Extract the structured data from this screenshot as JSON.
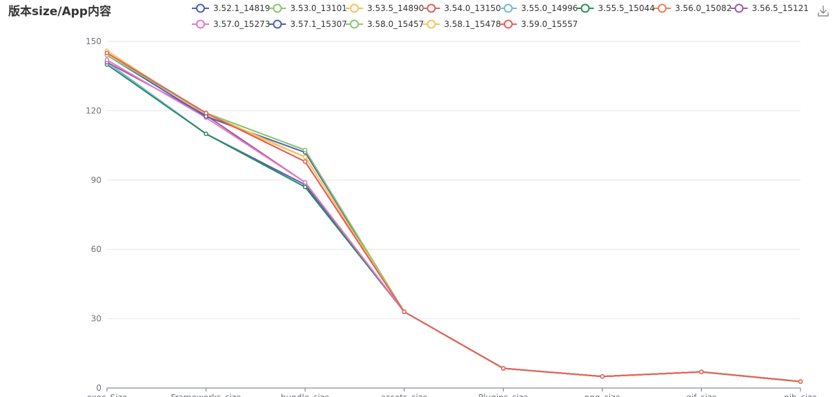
{
  "download_icon": "download-icon",
  "chart_data": {
    "type": "line",
    "title": "版本size/App内容",
    "categories": [
      "exec_Size",
      "Frameworks_size",
      "bundle_size",
      "assets_size",
      "Plugins_size",
      "png_size",
      "gif_size",
      "nib_size"
    ],
    "ylim": [
      0,
      150
    ],
    "yticks": [
      0,
      30,
      60,
      90,
      120,
      150
    ],
    "grid": true,
    "legend_position": "top",
    "series": [
      {
        "name": "3.52.1_14819",
        "color": "#4a5fb2",
        "values": [
          141,
          110,
          88,
          33,
          8.5,
          5,
          7,
          2.8
        ]
      },
      {
        "name": "3.53.0_13101",
        "color": "#8ac66e",
        "values": [
          144,
          119,
          103,
          33,
          8.5,
          5,
          7,
          2.8
        ]
      },
      {
        "name": "3.53.5_14890",
        "color": "#f7c35a",
        "values": [
          146,
          118,
          100,
          33,
          8.5,
          5,
          7,
          2.8
        ]
      },
      {
        "name": "3.54.0_13150",
        "color": "#e6605a",
        "values": [
          145,
          119,
          98,
          33,
          8.5,
          5,
          7,
          2.8
        ]
      },
      {
        "name": "3.55.0_14996",
        "color": "#73b9d8",
        "values": [
          141,
          110,
          87,
          33,
          8.5,
          5,
          7,
          2.8
        ]
      },
      {
        "name": "3.55.5_15044",
        "color": "#2d8a5e",
        "values": [
          140,
          110,
          87,
          33,
          8.5,
          5,
          7,
          2.8
        ]
      },
      {
        "name": "3.56.0_15082",
        "color": "#ee7d56",
        "values": [
          145,
          119,
          98,
          33,
          8.5,
          5,
          7,
          2.8
        ]
      },
      {
        "name": "3.56.5_15121",
        "color": "#9b5ba6",
        "values": [
          141,
          118,
          89,
          33,
          8.5,
          5,
          7,
          2.8
        ]
      },
      {
        "name": "3.57.0_15273",
        "color": "#e57ac3",
        "values": [
          142,
          117,
          89,
          33,
          8.5,
          5,
          7,
          2.8
        ]
      },
      {
        "name": "3.57.1_15307",
        "color": "#4a5fb2",
        "values": [
          144,
          117.5,
          102,
          33,
          8.5,
          5,
          7,
          2.8
        ]
      },
      {
        "name": "3.58.0_15457",
        "color": "#8ac66e",
        "values": [
          144,
          119,
          103,
          33,
          8.5,
          5,
          7,
          2.8
        ]
      },
      {
        "name": "3.58.1_15478",
        "color": "#f7c35a",
        "values": [
          145,
          119,
          100,
          33,
          8.5,
          5,
          7,
          2.8
        ]
      },
      {
        "name": "3.59.0_15557",
        "color": "#e6605a",
        "values": [
          145,
          119,
          98,
          33,
          8.5,
          5,
          7,
          2.8
        ]
      }
    ]
  }
}
